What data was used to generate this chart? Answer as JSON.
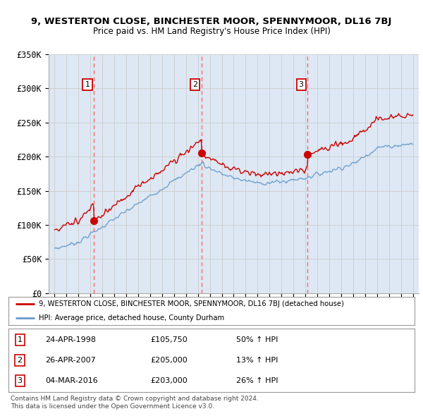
{
  "title": "9, WESTERTON CLOSE, BINCHESTER MOOR, SPENNYMOOR, DL16 7BJ",
  "subtitle": "Price paid vs. HM Land Registry's House Price Index (HPI)",
  "legend_line1": "9, WESTERTON CLOSE, BINCHESTER MOOR, SPENNYMOOR, DL16 7BJ (detached house)",
  "legend_line2": "HPI: Average price, detached house, County Durham",
  "footer1": "Contains HM Land Registry data © Crown copyright and database right 2024.",
  "footer2": "This data is licensed under the Open Government Licence v3.0.",
  "transactions": [
    {
      "num": 1,
      "date": "24-APR-1998",
      "price": "£105,750",
      "change": "50% ↑ HPI",
      "year": 1998.3,
      "value": 105750
    },
    {
      "num": 2,
      "date": "26-APR-2007",
      "price": "£205,000",
      "change": "13% ↑ HPI",
      "year": 2007.3,
      "value": 205000
    },
    {
      "num": 3,
      "date": "04-MAR-2016",
      "price": "£203,000",
      "change": "26% ↑ HPI",
      "year": 2016.2,
      "value": 203000
    }
  ],
  "ylim": [
    0,
    350000
  ],
  "yticks": [
    0,
    50000,
    100000,
    150000,
    200000,
    250000,
    300000,
    350000
  ],
  "ytick_labels": [
    "£0",
    "£50K",
    "£100K",
    "£150K",
    "£200K",
    "£250K",
    "£300K",
    "£350K"
  ],
  "xlim": [
    1994.5,
    2025.5
  ],
  "hpi_color": "#6699cc",
  "price_color": "#cc0000",
  "vline_color": "#ff6666",
  "grid_color": "#cccccc",
  "bg_color": "#dde8f4",
  "background_color": "#ffffff"
}
